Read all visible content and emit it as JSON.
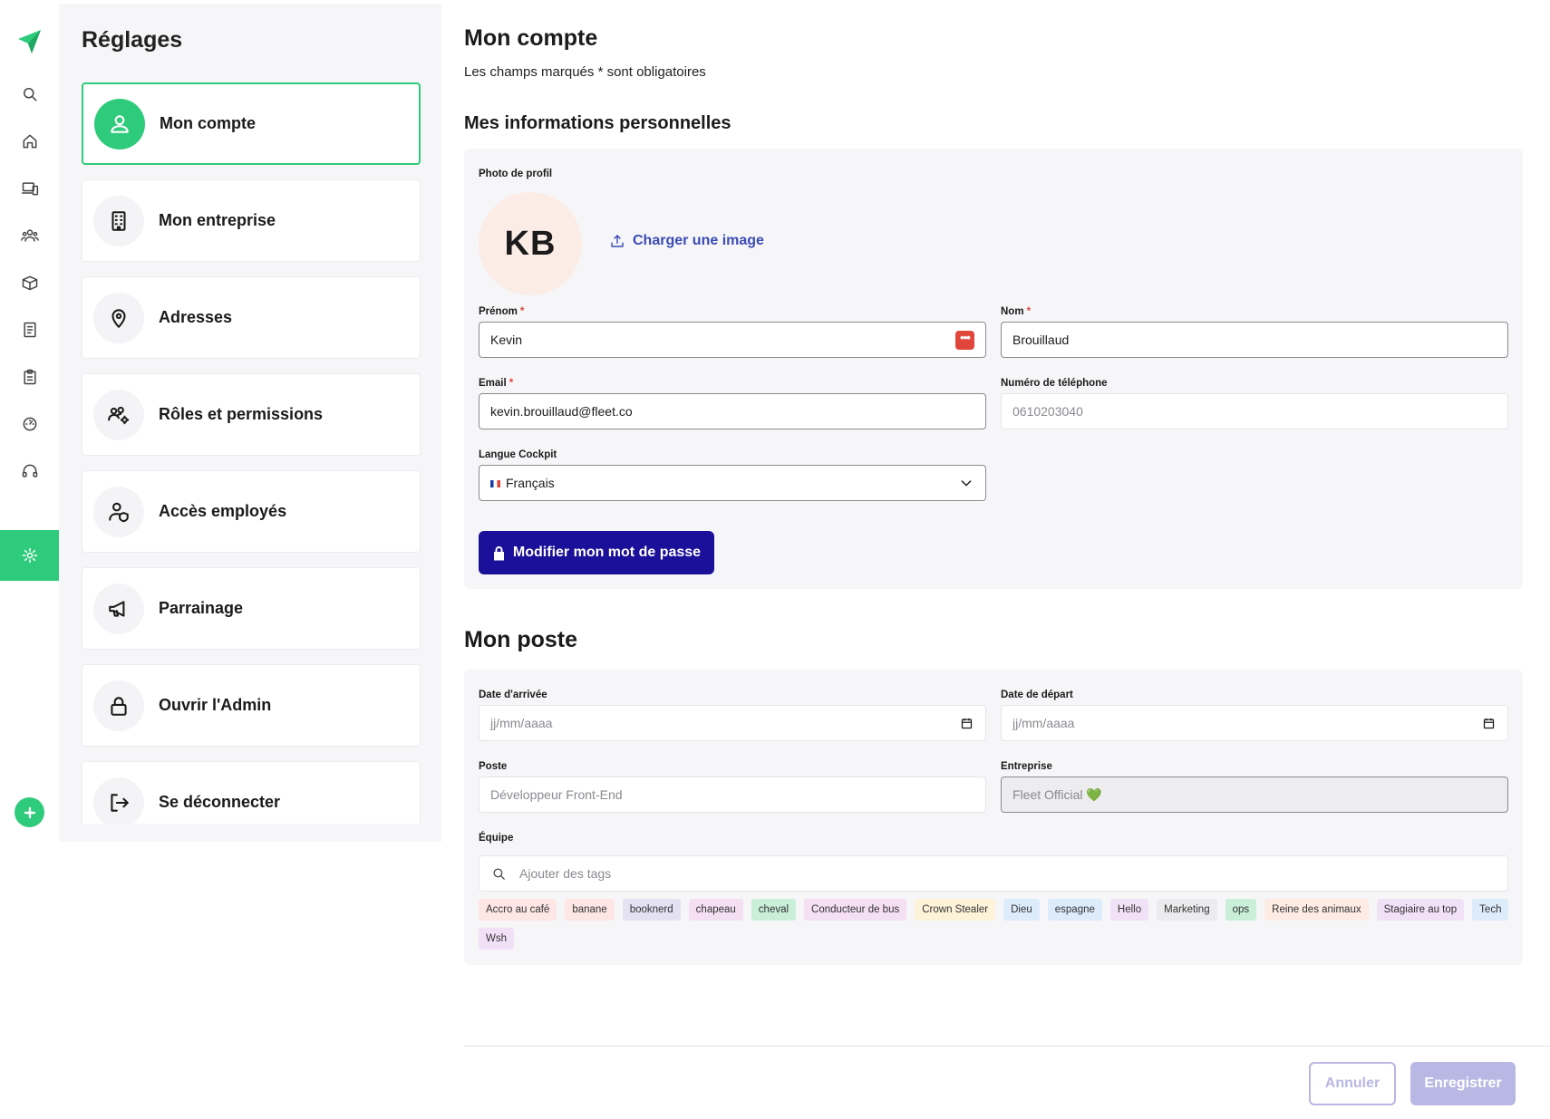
{
  "settings": {
    "title": "Réglages",
    "menu": [
      {
        "label": "Mon compte",
        "icon": "user-icon",
        "active": true
      },
      {
        "label": "Mon entreprise",
        "icon": "building-icon"
      },
      {
        "label": "Adresses",
        "icon": "map-pin-icon"
      },
      {
        "label": "Rôles et permissions",
        "icon": "users-gear-icon"
      },
      {
        "label": "Accès employés",
        "icon": "user-shield-icon"
      },
      {
        "label": "Parrainage",
        "icon": "megaphone-icon"
      },
      {
        "label": "Ouvrir l'Admin",
        "icon": "lock-icon"
      },
      {
        "label": "Se déconnecter",
        "icon": "logout-icon"
      }
    ]
  },
  "rail": {
    "items": [
      "search-icon",
      "home-icon",
      "devices-icon",
      "team-icon",
      "box-icon",
      "book-icon",
      "clipboard-icon",
      "dashboard-icon",
      "headset-icon",
      "settings-icon"
    ],
    "active": "settings-icon",
    "accent": "#2fcb7c"
  },
  "main": {
    "title": "Mon compte",
    "subtitle": "Les champs marqués * sont obligatoires",
    "personal": {
      "heading": "Mes informations personnelles",
      "photo_label": "Photo de profil",
      "initials": "KB",
      "upload_label": "Charger une image",
      "firstname": {
        "label": "Prénom",
        "required": "*",
        "value": "Kevin"
      },
      "lastname": {
        "label": "Nom",
        "required": "*",
        "value": "Brouillaud"
      },
      "email": {
        "label": "Email",
        "required": "*",
        "value": "kevin.brouillaud@fleet.co"
      },
      "phone": {
        "label": "Numéro de téléphone",
        "placeholder": "0610203040"
      },
      "language": {
        "label": "Langue Cockpit",
        "value": "Français"
      },
      "password_button": "Modifier mon mot de passe"
    },
    "job": {
      "heading": "Mon poste",
      "arrival": {
        "label": "Date d'arrivée",
        "placeholder": "jj/mm/aaaa"
      },
      "departure": {
        "label": "Date de départ",
        "placeholder": "jj/mm/aaaa"
      },
      "position": {
        "label": "Poste",
        "placeholder": "Développeur Front-End"
      },
      "company": {
        "label": "Entreprise",
        "value": "Fleet Official 💚"
      },
      "team": {
        "label": "Équipe",
        "placeholder": "Ajouter des tags"
      },
      "tags": [
        {
          "label": "Accro au café",
          "color": "#fde6e4"
        },
        {
          "label": "banane",
          "color": "#fde6e4"
        },
        {
          "label": "booknerd",
          "color": "#e3e1f2"
        },
        {
          "label": "chapeau",
          "color": "#f5dff2"
        },
        {
          "label": "cheval",
          "color": "#c9efd9"
        },
        {
          "label": "Conducteur de bus",
          "color": "#f5dff2"
        },
        {
          "label": "Crown Stealer",
          "color": "#fdf3d9"
        },
        {
          "label": "Dieu",
          "color": "#dcecfb"
        },
        {
          "label": "espagne",
          "color": "#dcecfb"
        },
        {
          "label": "Hello",
          "color": "#f1e1f7"
        },
        {
          "label": "Marketing",
          "color": "#ececef"
        },
        {
          "label": "ops",
          "color": "#c9efd9"
        },
        {
          "label": "Reine des animaux",
          "color": "#fdebe4"
        },
        {
          "label": "Stagiaire au top",
          "color": "#f1e1f7"
        },
        {
          "label": "Tech",
          "color": "#dcecfb"
        },
        {
          "label": "Wsh",
          "color": "#f1e1f7"
        }
      ]
    }
  },
  "footer": {
    "cancel": "Annuler",
    "save": "Enregistrer"
  }
}
